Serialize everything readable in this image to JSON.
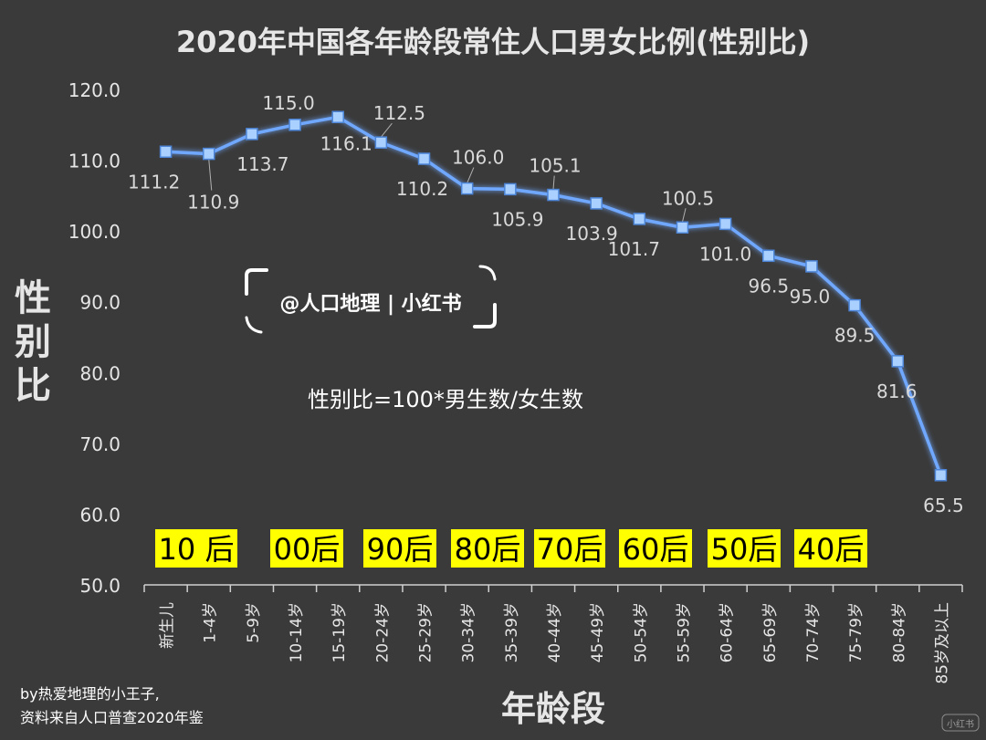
{
  "chart_data": {
    "type": "line",
    "title": "2020年中国各年龄段常住人口男女比例(性别比)",
    "xlabel": "年龄段",
    "ylabel": "性别比",
    "ylim": [
      50,
      120
    ],
    "yticks": [
      "50.0",
      "60.0",
      "70.0",
      "80.0",
      "90.0",
      "100.0",
      "110.0",
      "120.0"
    ],
    "categories": [
      "新生儿",
      "1-4岁",
      "5-9岁",
      "10-14岁",
      "15-19岁",
      "20-24岁",
      "25-29岁",
      "30-34岁",
      "35-39岁",
      "40-44岁",
      "45-49岁",
      "50-54岁",
      "55-59岁",
      "60-64岁",
      "65-69岁",
      "70-74岁",
      "75-79岁",
      "80-84岁",
      "85岁及以上"
    ],
    "series": [
      {
        "values": [
          111.2,
          110.9,
          113.7,
          115.0,
          116.1,
          112.5,
          110.2,
          106.0,
          105.9,
          105.1,
          103.9,
          101.7,
          100.5,
          101.0,
          96.5,
          95.0,
          89.5,
          81.6,
          65.5
        ],
        "labels": [
          "111.2",
          "110.9",
          "113.7",
          "115.0",
          "116.1",
          "112.5",
          "110.2",
          "106.0",
          "105.9",
          "105.1",
          "103.9",
          "101.7",
          "100.5",
          "101.0",
          "96.5",
          "95.0",
          "89.5",
          "81.6",
          "65.5"
        ],
        "color": "#6fa8ff"
      }
    ],
    "grid": false,
    "annotations": {
      "formula": "性别比=100*男生数/女生数",
      "watermark": "@人口地理 | 小红书",
      "credit_line1": "by热爱地理的小王子,",
      "credit_line2": "资料来自人口普查2020年鉴",
      "corner_mark": "小红书"
    },
    "generation_labels": [
      "10 后",
      "00后",
      "90后",
      "80后",
      "70后",
      "60后",
      "50后",
      "40后"
    ],
    "colors": {
      "background": "#3a3a3a",
      "line": "#6fa8ff",
      "marker": "#a9d0ff",
      "generation_box": "#ffff00",
      "text": "#e6e6e6"
    }
  }
}
